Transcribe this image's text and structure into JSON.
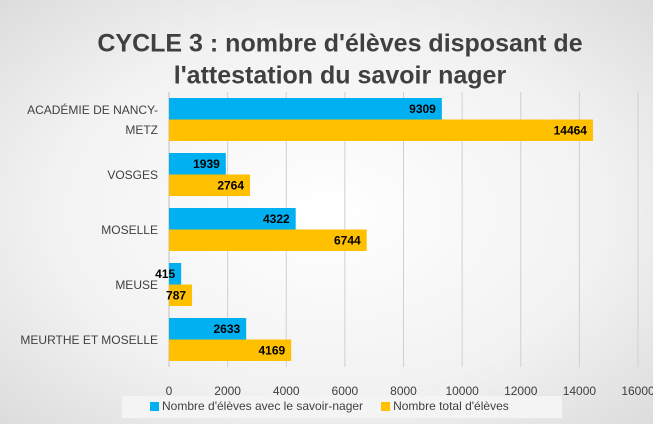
{
  "chart_data": {
    "type": "hbar",
    "title": [
      "CYCLE 3 :  nombre d'élèves disposant de",
      "l'attestation du savoir nager"
    ],
    "categories": [
      "ACADÉMIE DE NANCY-METZ",
      "VOSGES",
      "MOSELLE",
      "MEUSE",
      "MEURTHE ET MOSELLE"
    ],
    "series": [
      {
        "name": "Nombre d'élèves avec le savoir-nager",
        "color": "#00b0f0",
        "values": [
          9309,
          1939,
          4322,
          415,
          2633
        ]
      },
      {
        "name": "Nombre total d'élèves",
        "color": "#ffc000",
        "values": [
          14464,
          2764,
          6744,
          787,
          4169
        ]
      }
    ],
    "xlim": [
      0,
      16000
    ],
    "xticks": [
      0,
      2000,
      4000,
      6000,
      8000,
      10000,
      12000,
      14000,
      16000
    ],
    "grid": true,
    "legend": "bottom"
  }
}
